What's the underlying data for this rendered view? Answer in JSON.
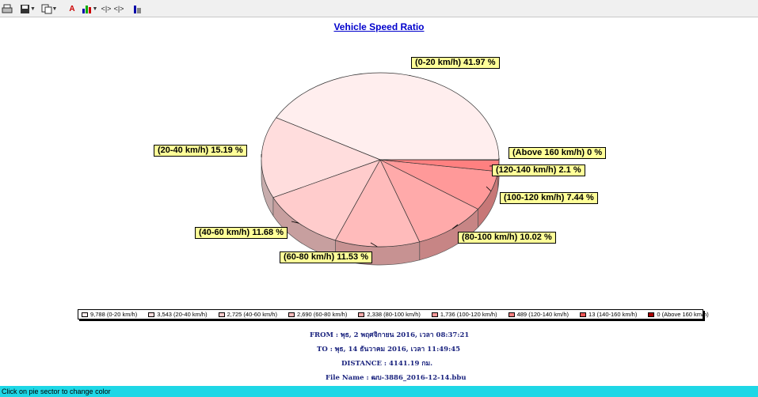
{
  "toolbar": {
    "icons": [
      "print-icon",
      "save-icon",
      "copy-icon",
      "text-format-icon",
      "chart-type-icon",
      "prev-icon",
      "next-icon",
      "info-icon"
    ]
  },
  "chart_data": {
    "type": "pie",
    "title": "Vehicle Speed Ratio",
    "categories": [
      "0-20 km/h",
      "20-40 km/h",
      "40-60 km/h",
      "60-80 km/h",
      "80-100 km/h",
      "100-120 km/h",
      "120-140 km/h",
      "140-160 km/h",
      "Above 160 km/h"
    ],
    "values": [
      9788,
      3543,
      2725,
      2690,
      2338,
      1736,
      489,
      13,
      0
    ],
    "percent_labels": [
      "(0-20 km/h) 41.97 %",
      "(20-40 km/h) 15.19 %",
      "(40-60 km/h) 11.68 %",
      "(60-80 km/h) 11.53 %",
      "(80-100 km/h) 10.02 %",
      "(100-120 km/h) 7.44 %",
      "(120-140 km/h) 2.1 %",
      "",
      "(Above 160 km/h) 0 %"
    ],
    "legend": [
      "9,788 (0-20 km/h)",
      "3,543 (20-40 km/h)",
      "2,725 (40-60 km/h)",
      "2,690 (60-80 km/h)",
      "2,338 (80-100 km/h)",
      "1,736 (100-120 km/h)",
      "489 (120-140 km/h)",
      "13 (140-160 km/h)",
      "0 (Above 160 km/h)"
    ],
    "colors": [
      "#ffeeee",
      "#ffdddd",
      "#ffcccc",
      "#ffbbbb",
      "#ffaaaa",
      "#ff9999",
      "#ff8080",
      "#ee5555",
      "#aa0000"
    ],
    "legend_placement": "bottom"
  },
  "info": {
    "from": "FROM : พุธ, 2 พฤศจิกายน 2016,  เวลา  08:37:21",
    "to": "TO    : พุธ, 14 ธันวาคม 2016,  เวลา  11:49:45",
    "distance": "DISTANCE : 4141.19 กม.",
    "file_name": "File Name : ฒบ-3886_2016-12-14.bbu"
  },
  "status": "Click on pie sector to change color"
}
